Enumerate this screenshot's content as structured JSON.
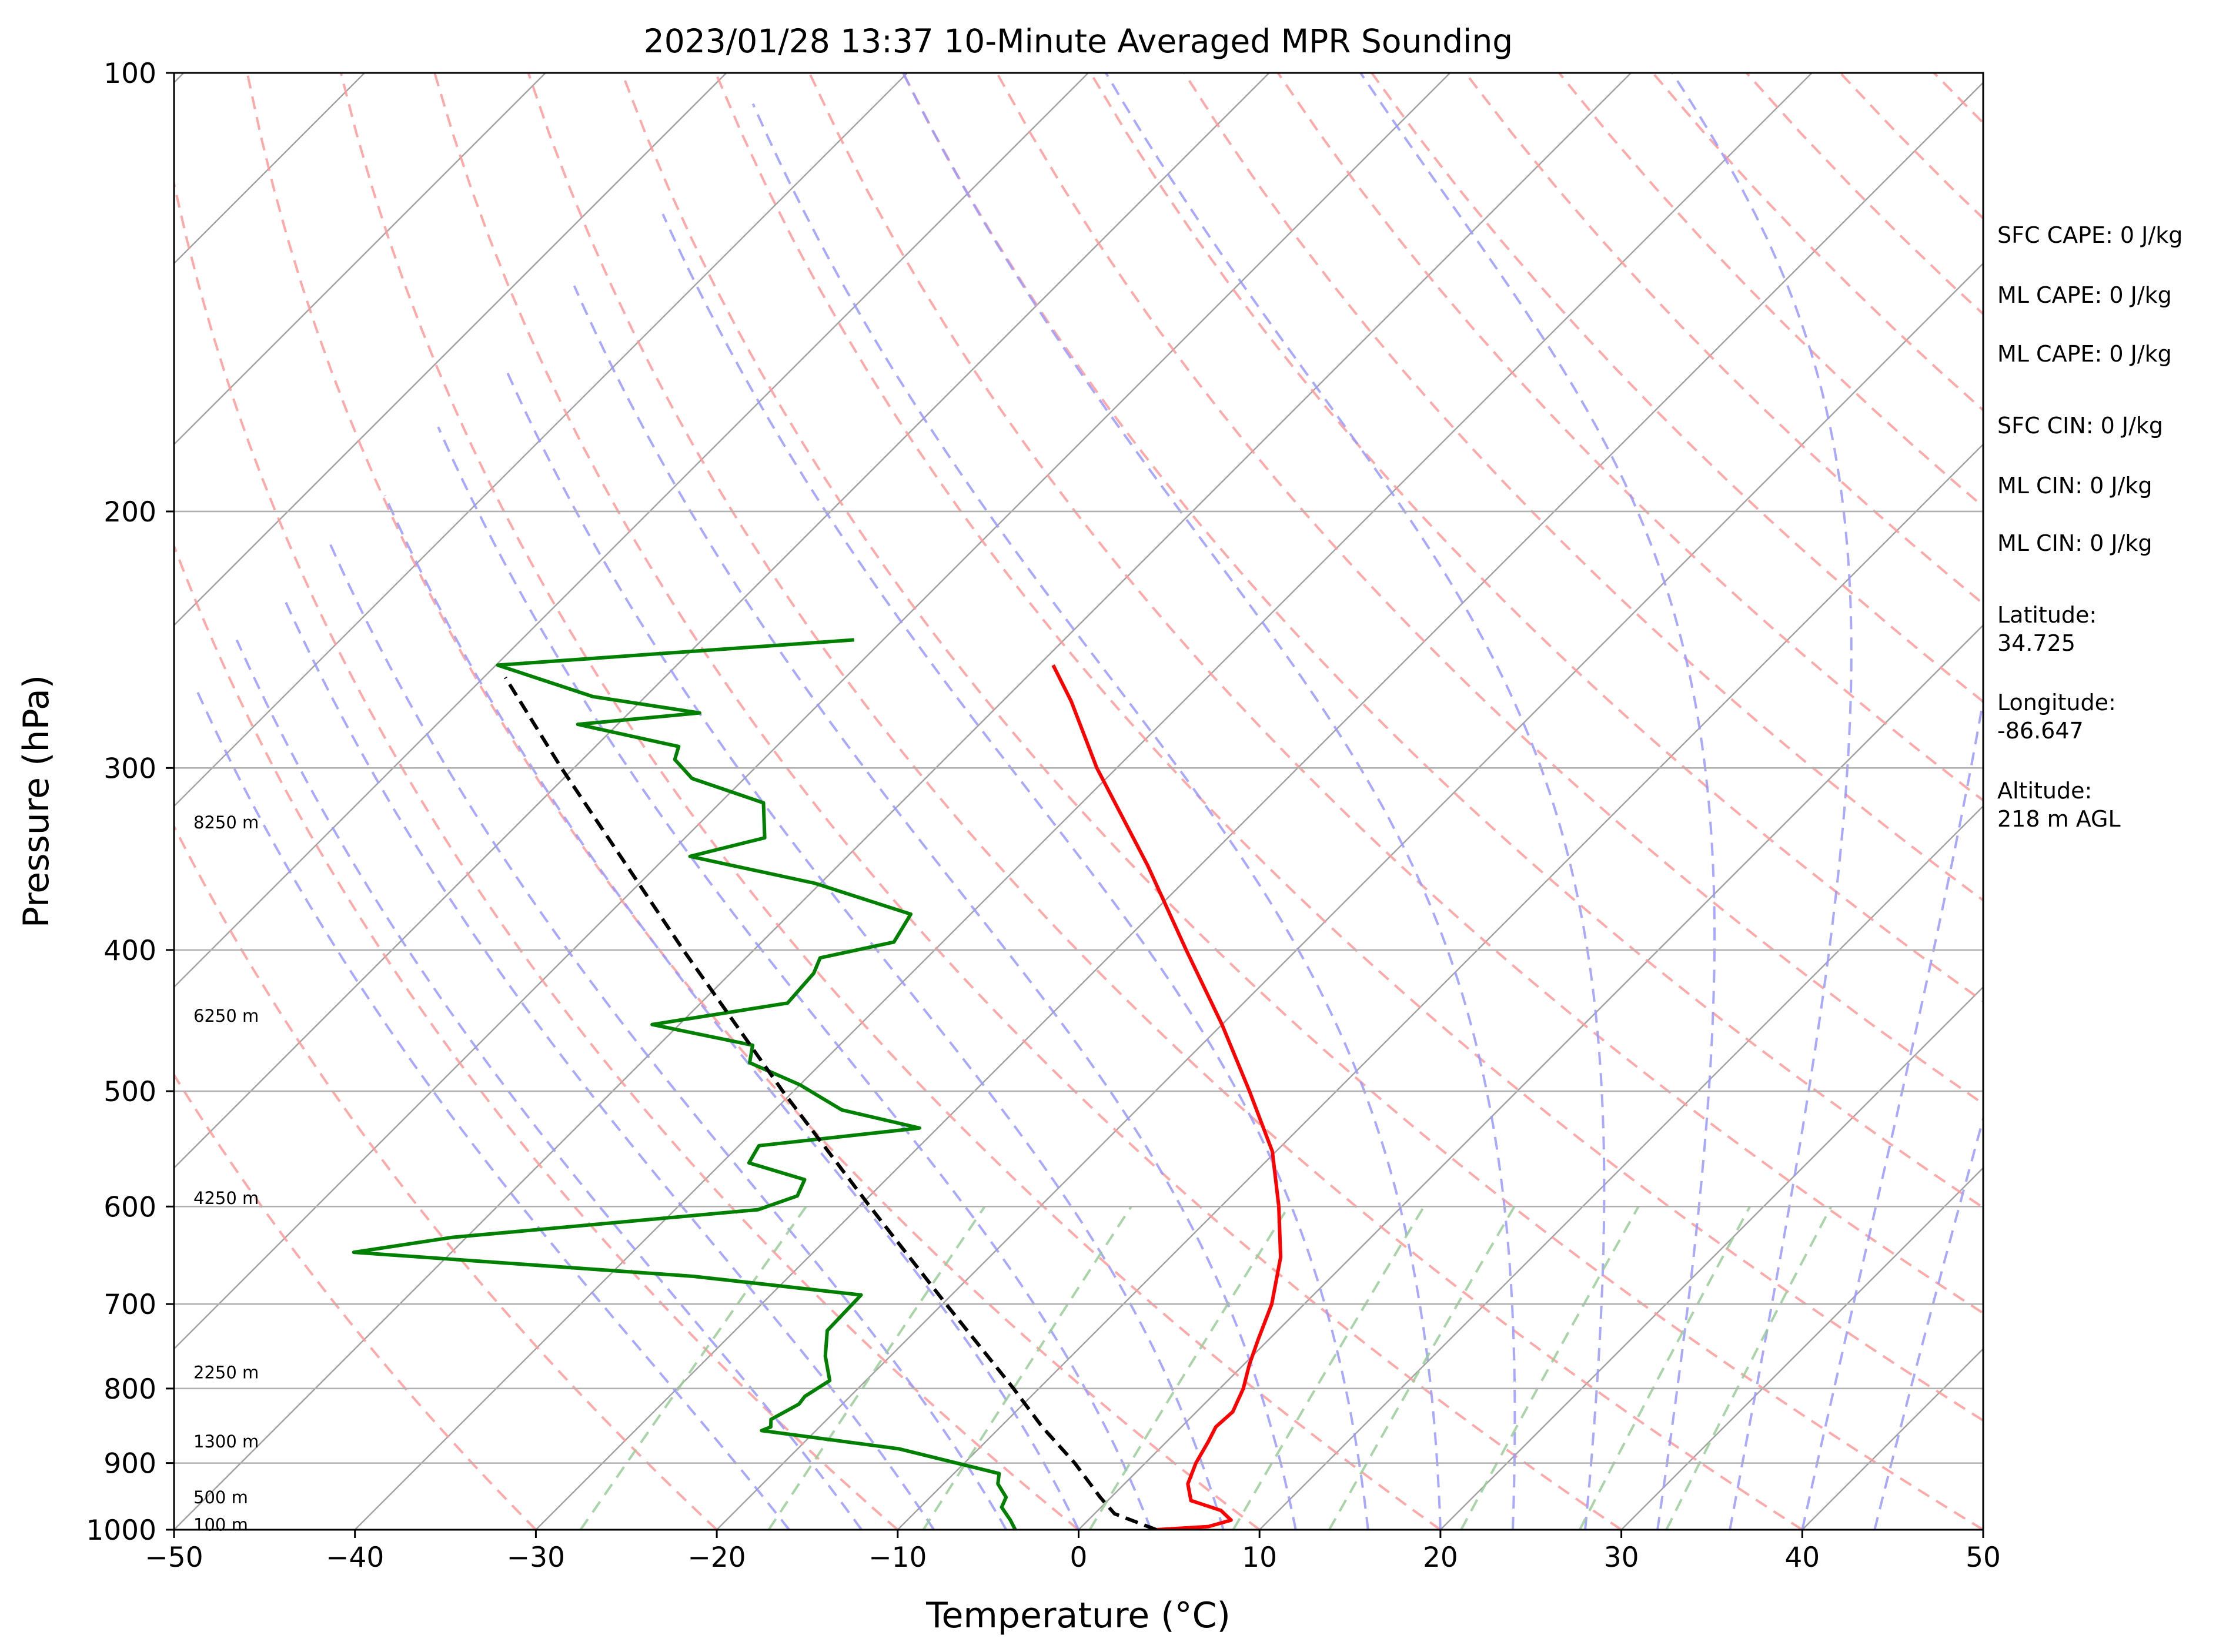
{
  "chart_data": {
    "type": "line",
    "subtype": "skew-t log-p sounding",
    "title": "2023/01/28 13:37 10-Minute Averaged MPR Sounding",
    "xlabel": "Temperature (°C)",
    "ylabel": "Pressure (hPa)",
    "xlim": [
      -50,
      50
    ],
    "ylim": [
      1000,
      100
    ],
    "y_scale": "log",
    "x_ticks": [
      -50,
      -40,
      -30,
      -20,
      -10,
      0,
      10,
      20,
      30,
      40,
      50
    ],
    "x_tick_labels": [
      "−50",
      "−40",
      "−30",
      "−20",
      "−10",
      "0",
      "10",
      "20",
      "30",
      "40",
      "50"
    ],
    "y_ticks": [
      100,
      200,
      300,
      400,
      500,
      600,
      700,
      800,
      900,
      1000
    ],
    "y_tick_labels": [
      "100",
      "200",
      "300",
      "400",
      "500",
      "600",
      "700",
      "800",
      "900",
      "1000"
    ],
    "grid": true,
    "colors": {
      "temperature": "#ff0000",
      "dewpoint": "#008000",
      "parcel": "#000000",
      "isotherm": "#a0a0a0",
      "dry_adiabat": "#ff9999",
      "moist_adiabat": "#9999ff",
      "mixing_ratio": "#99cc99"
    },
    "series": [
      {
        "kind": "temperature",
        "points": [
          [
            1000,
            4.3
          ],
          [
            995,
            7.0
          ],
          [
            985,
            7.9
          ],
          [
            970,
            6.8
          ],
          [
            955,
            4.6
          ],
          [
            930,
            3.5
          ],
          [
            900,
            2.8
          ],
          [
            870,
            2.3
          ],
          [
            850,
            1.9
          ],
          [
            830,
            2.0
          ],
          [
            800,
            1.3
          ],
          [
            770,
            0.3
          ],
          [
            740,
            -0.6
          ],
          [
            700,
            -1.8
          ],
          [
            650,
            -3.9
          ],
          [
            600,
            -6.8
          ],
          [
            550,
            -10.2
          ],
          [
            500,
            -14.8
          ],
          [
            450,
            -20.0
          ],
          [
            400,
            -26.1
          ],
          [
            350,
            -32.9
          ],
          [
            300,
            -41.1
          ],
          [
            270,
            -46.2
          ],
          [
            255,
            -49.2
          ]
        ]
      },
      {
        "kind": "dewpoint",
        "points": [
          [
            1000,
            -3.5
          ],
          [
            985,
            -4.3
          ],
          [
            965,
            -5.5
          ],
          [
            950,
            -5.8
          ],
          [
            930,
            -7.0
          ],
          [
            915,
            -7.5
          ],
          [
            880,
            -14.4
          ],
          [
            855,
            -23.0
          ],
          [
            850,
            -22.7
          ],
          [
            840,
            -23.1
          ],
          [
            820,
            -22.4
          ],
          [
            810,
            -22.5
          ],
          [
            790,
            -22.0
          ],
          [
            760,
            -23.6
          ],
          [
            730,
            -24.9
          ],
          [
            690,
            -25.0
          ],
          [
            670,
            -35.3
          ],
          [
            645,
            -55.4
          ],
          [
            630,
            -50.8
          ],
          [
            603,
            -35.4
          ],
          [
            590,
            -34.0
          ],
          [
            575,
            -34.5
          ],
          [
            560,
            -38.5
          ],
          [
            545,
            -38.9
          ],
          [
            530,
            -31.0
          ],
          [
            515,
            -36.3
          ],
          [
            495,
            -40.0
          ],
          [
            478,
            -44.0
          ],
          [
            465,
            -44.8
          ],
          [
            450,
            -51.5
          ],
          [
            435,
            -45.2
          ],
          [
            415,
            -45.4
          ],
          [
            405,
            -45.9
          ],
          [
            395,
            -42.7
          ],
          [
            378,
            -43.3
          ],
          [
            360,
            -50.3
          ],
          [
            345,
            -58.7
          ],
          [
            335,
            -55.6
          ],
          [
            317,
            -57.6
          ],
          [
            305,
            -62.9
          ],
          [
            296,
            -64.9
          ],
          [
            290,
            -65.4
          ],
          [
            280,
            -72.2
          ],
          [
            275,
            -66.1
          ],
          [
            268,
            -72.9
          ],
          [
            255,
            -79.9
          ],
          [
            245,
            -61.6
          ]
        ]
      },
      {
        "kind": "parcel",
        "points": [
          [
            1000,
            4.3
          ],
          [
            975,
            1.1
          ],
          [
            950,
            -0.6
          ],
          [
            900,
            -3.9
          ],
          [
            850,
            -7.7
          ],
          [
            800,
            -11.4
          ],
          [
            700,
            -19.8
          ],
          [
            600,
            -29.4
          ],
          [
            500,
            -40.6
          ],
          [
            400,
            -53.9
          ],
          [
            300,
            -70.7
          ],
          [
            260,
            -78.8
          ]
        ]
      }
    ],
    "height_labels": [
      {
        "text": "100 m",
        "p": 992
      },
      {
        "text": "500 m",
        "p": 950
      },
      {
        "text": "1300 m",
        "p": 870
      },
      {
        "text": "2250 m",
        "p": 780
      },
      {
        "text": "4250 m",
        "p": 592
      },
      {
        "text": "6250 m",
        "p": 444
      },
      {
        "text": "8250 m",
        "p": 327
      }
    ],
    "annotations": [
      "SFC CAPE: 0 J/kg",
      "ML CAPE: 0 J/kg",
      "ML CAPE: 0 J/kg",
      "SFC CIN: 0 J/kg",
      "ML CIN: 0 J/kg",
      "ML CIN: 0 J/kg",
      "Latitude:\n34.725",
      "Longitude:\n-86.647",
      "Altitude:\n218 m AGL"
    ]
  }
}
